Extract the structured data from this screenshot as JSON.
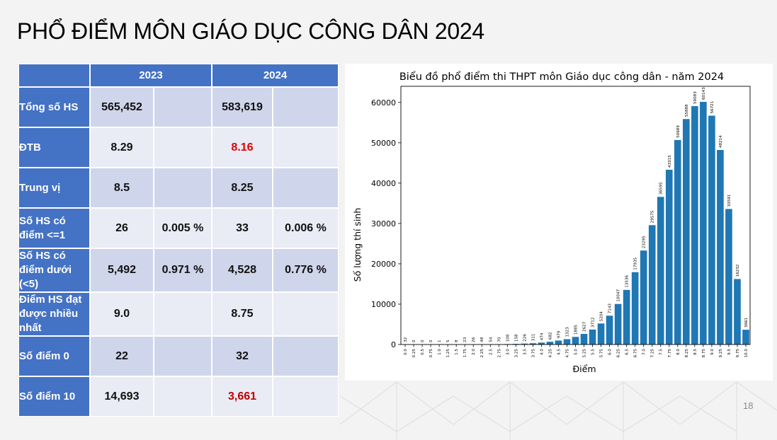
{
  "slide": {
    "title": "PHỔ ĐIỂM MÔN GIÁO DỤC CÔNG DÂN 2024",
    "page_number": "18"
  },
  "table": {
    "headers": [
      "2023",
      "2024"
    ],
    "rows": [
      {
        "label": "Tổng số HS",
        "v2023": "565,452",
        "p2023": "",
        "v2024": "583,619",
        "p2024": ""
      },
      {
        "label": "ĐTB",
        "v2023": "8.29",
        "p2023": "",
        "v2024": "8.16",
        "p2024": ""
      },
      {
        "label": "Trung vị",
        "v2023": "8.5",
        "p2023": "",
        "v2024": "8.25",
        "p2024": ""
      },
      {
        "label": "Số HS có điểm <=1",
        "v2023": "26",
        "p2023": "0.005 %",
        "v2024": "33",
        "p2024": "0.006 %"
      },
      {
        "label": "Số HS có điểm dưới (<5)",
        "v2023": "5,492",
        "p2023": "0.971 %",
        "v2024": "4,528",
        "p2024": "0.776 %"
      },
      {
        "label": "Điểm HS đạt được nhiều nhất",
        "v2023": "9.0",
        "p2023": "",
        "v2024": "8.75",
        "p2024": ""
      },
      {
        "label": "Số điểm 0",
        "v2023": "22",
        "p2023": "",
        "v2024": "32",
        "p2024": ""
      },
      {
        "label": "Số điểm 10",
        "v2023": "14,693",
        "p2023": "",
        "v2024": "3,661",
        "p2024": ""
      }
    ]
  },
  "chart_data": {
    "type": "bar",
    "title": "Biểu đồ phổ điểm thi THPT môn Giáo dục công dân - năm 2024",
    "xlabel": "Điểm",
    "ylabel": "Số lượng thí sinh",
    "ylim": [
      0,
      64000
    ],
    "yticks": [
      0,
      10000,
      20000,
      30000,
      40000,
      50000,
      60000
    ],
    "categories": [
      "0.0",
      "0.25",
      "0.5",
      "0.75",
      "1.0",
      "1.25",
      "1.5",
      "1.75",
      "2.0",
      "2.25",
      "2.5",
      "2.75",
      "3.0",
      "3.25",
      "3.5",
      "3.75",
      "4.0",
      "4.25",
      "4.5",
      "4.75",
      "5.0",
      "5.25",
      "5.5",
      "5.75",
      "6.0",
      "6.25",
      "6.5",
      "6.75",
      "7.0",
      "7.25",
      "7.5",
      "7.75",
      "8.0",
      "8.25",
      "8.5",
      "8.75",
      "9.0",
      "9.25",
      "9.5",
      "9.75",
      "10.0"
    ],
    "values": [
      32,
      0,
      0,
      0,
      1,
      5,
      8,
      23,
      26,
      48,
      54,
      70,
      108,
      158,
      226,
      311,
      474,
      682,
      979,
      1323,
      1885,
      2627,
      3712,
      5204,
      7143,
      10047,
      13536,
      17935,
      23295,
      29575,
      36595,
      43315,
      50689,
      55888,
      59083,
      60143,
      56721,
      48214,
      33591,
      16232,
      3661
    ],
    "bar_color": "#1f77b4"
  }
}
